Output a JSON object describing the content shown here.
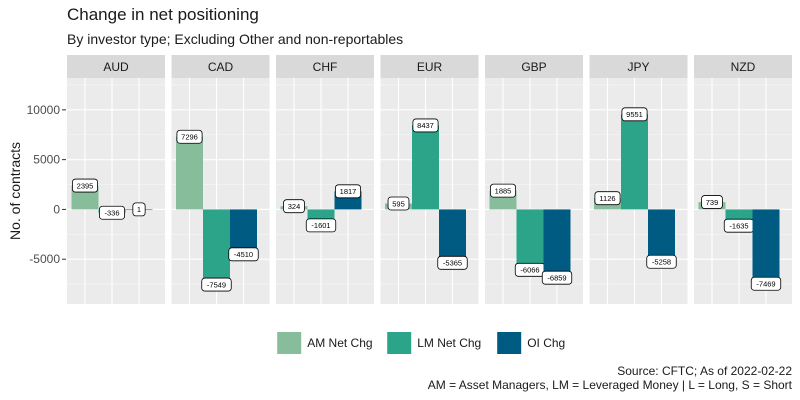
{
  "chart_data": {
    "type": "bar",
    "title": "Change in net positioning",
    "subtitle": "By investor type; Excluding Other and non-reportables",
    "ylabel": "No. of contracts",
    "xlabel": "",
    "ylim": [
      -9500,
      13200
    ],
    "yticks": [
      -5000,
      0,
      5000,
      10000
    ],
    "grid": true,
    "legend_position": "bottom",
    "facets": [
      "AUD",
      "CAD",
      "CHF",
      "EUR",
      "GBP",
      "JPY",
      "NZD"
    ],
    "series": [
      {
        "name": "AM Net Chg",
        "color": "#88bd9b",
        "values": [
          2395,
          7296,
          324,
          595,
          1885,
          1126,
          739
        ]
      },
      {
        "name": "LM Net Chg",
        "color": "#2ca48a",
        "values": [
          -336,
          -7549,
          -1601,
          8437,
          -6066,
          9551,
          -1635
        ]
      },
      {
        "name": "OI Chg",
        "color": "#005b82",
        "values": [
          1,
          -4510,
          1817,
          -5365,
          -6859,
          -5258,
          -7469
        ]
      }
    ],
    "caption": [
      "Source: CFTC; As of 2022-02-22",
      "AM = Asset Managers, LM = Leveraged Money | L = Long, S = Short"
    ]
  }
}
